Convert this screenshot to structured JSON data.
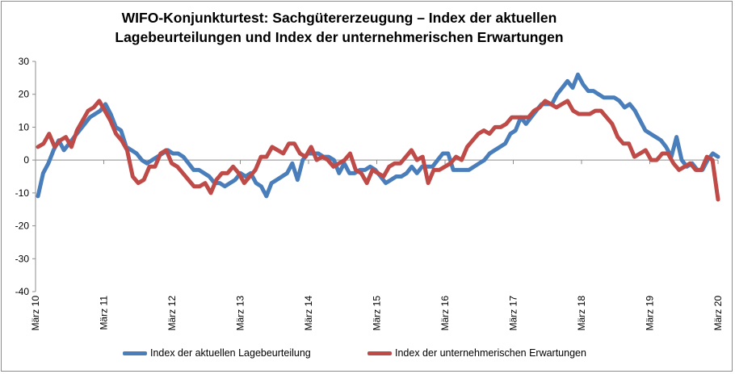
{
  "chart_data": {
    "type": "line",
    "title_line1": "WIFO-Konjunkturtest: Sachgütererzeugung – Index der aktuellen",
    "title_line2": "Lagebeurteilungen und Index der unternehmerischen Erwartungen",
    "ylim": [
      -40,
      30
    ],
    "yticks": [
      30,
      20,
      10,
      0,
      -10,
      -20,
      -30,
      -40
    ],
    "xticks": [
      "März 10",
      "März 11",
      "März 12",
      "März 13",
      "März 14",
      "März 15",
      "März 16",
      "März 17",
      "März 18",
      "März 19",
      "März 20"
    ],
    "x_start_label": "März 10",
    "x_end_label": "März 20",
    "grid": false,
    "legend_position": "bottom",
    "series": [
      {
        "name": "Index der aktuellen Lagebeurteilung",
        "color": "#4a7ebb",
        "values": [
          -11,
          -4,
          -1,
          3,
          6,
          3,
          5,
          7,
          9,
          11,
          13,
          14,
          15,
          17,
          14,
          10,
          9,
          4,
          3,
          2,
          0,
          -1,
          0,
          1,
          2,
          3,
          2,
          2,
          1,
          -1,
          -3,
          -3,
          -4,
          -5,
          -7,
          -7,
          -8,
          -7,
          -6,
          -4,
          -5,
          -4,
          -7,
          -8,
          -11,
          -7,
          -6,
          -5,
          -4,
          -1,
          -6,
          0,
          2,
          2,
          2,
          1,
          1,
          0,
          -4,
          -1,
          -4,
          -4,
          -3,
          -3,
          -2,
          -3,
          -5,
          -7,
          -6,
          -5,
          -5,
          -4,
          -2,
          -4,
          -2,
          -2,
          -2,
          0,
          2,
          2,
          -3,
          -3,
          -3,
          -3,
          -2,
          -1,
          0,
          2,
          3,
          4,
          5,
          8,
          9,
          13,
          11,
          13,
          15,
          17,
          17,
          17,
          20,
          22,
          24,
          22,
          26,
          23,
          21,
          21,
          20,
          19,
          19,
          19,
          18,
          16,
          17,
          15,
          12,
          9,
          8,
          7,
          6,
          4,
          1,
          7,
          0,
          -2,
          -1,
          -3,
          -3,
          0,
          2,
          1
        ]
      },
      {
        "name": "Index der unternehmerischen Erwartungen",
        "color": "#be4b48",
        "values": [
          4,
          5,
          8,
          4,
          6,
          7,
          4,
          9,
          12,
          15,
          16,
          18,
          15,
          12,
          8,
          6,
          3,
          -5,
          -7,
          -6,
          -2,
          -2,
          2,
          3,
          -1,
          -2,
          -4,
          -6,
          -8,
          -8,
          -7,
          -10,
          -6,
          -4,
          -4,
          -2,
          -4,
          -7,
          -5,
          -3,
          1,
          1,
          4,
          3,
          2,
          5,
          5,
          2,
          1,
          4,
          0,
          1,
          0,
          -2,
          -1,
          0,
          2,
          -3,
          -4,
          -7,
          -3,
          -4,
          -5,
          -2,
          -1,
          -1,
          1,
          3,
          0,
          1,
          -7,
          -3,
          -3,
          -2,
          -1,
          1,
          0,
          4,
          6,
          8,
          9,
          8,
          10,
          10,
          11,
          13,
          13,
          13,
          13,
          15,
          16,
          18,
          17,
          16,
          17,
          18,
          15,
          14,
          14,
          14,
          15,
          15,
          13,
          11,
          7,
          5,
          5,
          1,
          2,
          3,
          0,
          0,
          2,
          2,
          -1,
          -3,
          -2,
          -1,
          -3,
          -3,
          1,
          0,
          -12
        ]
      }
    ]
  }
}
